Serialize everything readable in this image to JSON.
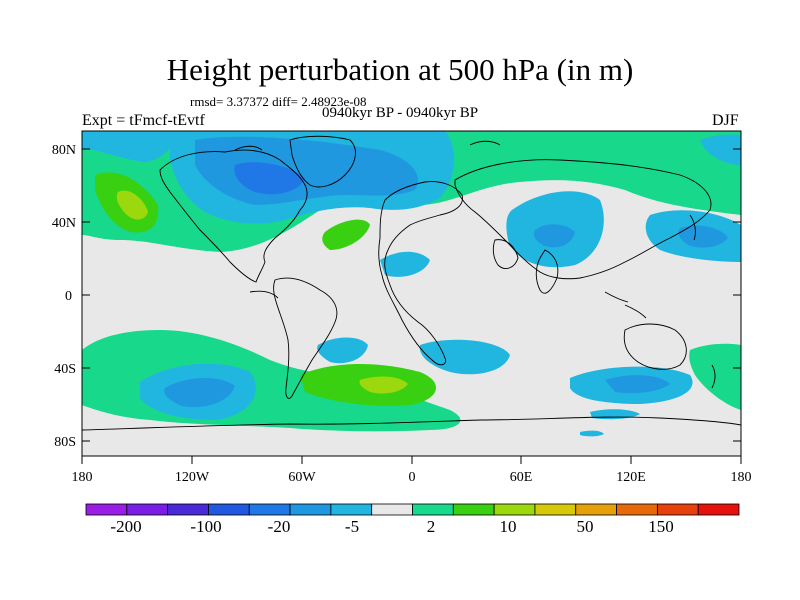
{
  "title": "Height perturbation at 500 hPa (in m)",
  "stats": "rmsd= 3.37372 diff= 2.48923e-08",
  "experiment": "Expt = tFmcf-tEvtf",
  "period": "0940kyr BP - 0940kyr BP",
  "season": "DJF",
  "map": {
    "background_color": "#e8e8e8",
    "lat_labels": [
      "80N",
      "40N",
      "0",
      "40S",
      "80S"
    ],
    "lon_labels": [
      "180",
      "120W",
      "60W",
      "0",
      "60E",
      "120E",
      "180"
    ]
  },
  "colorbar": {
    "colors": [
      "#9a1ee6",
      "#7a1de6",
      "#4a2ad6",
      "#2058e0",
      "#2077e6",
      "#2098e0",
      "#20b6e0",
      "#e8e8e8",
      "#18d88c",
      "#38d010",
      "#9cd80e",
      "#d8c80a",
      "#e6a00a",
      "#e66a0c",
      "#e6400c",
      "#e6100c"
    ],
    "labels": [
      "-200",
      "-100",
      "-20",
      "-5",
      "2",
      "10",
      "50",
      "150"
    ]
  }
}
